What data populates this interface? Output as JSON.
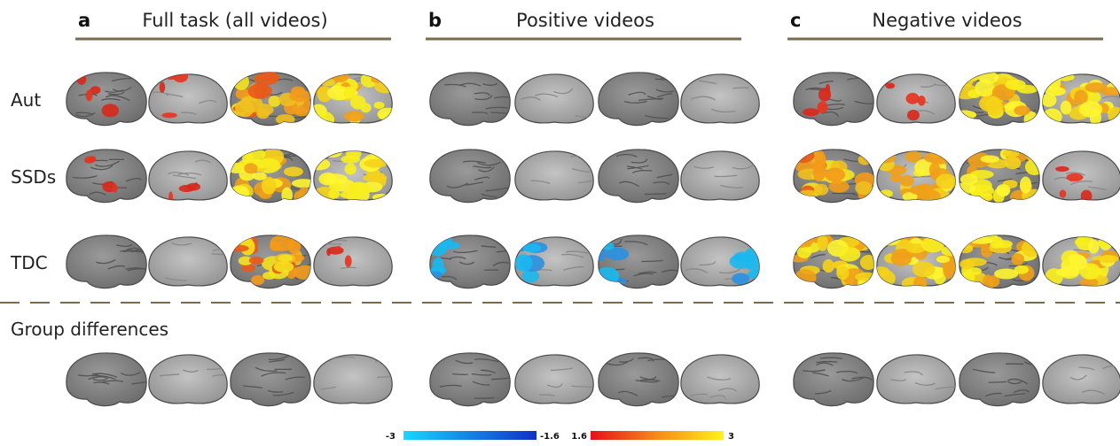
{
  "panels": [
    {
      "letter": "a",
      "title": "Full task (all videos)"
    },
    {
      "letter": "b",
      "title": "Positive videos"
    },
    {
      "letter": "c",
      "title": "Negative videos"
    }
  ],
  "rows": [
    "Aut",
    "SSDs",
    "TDC"
  ],
  "group_differences": "Group differences",
  "colorbar": {
    "negative": [
      "-3",
      "-1.6"
    ],
    "positive": [
      "1.6",
      "3"
    ]
  }
}
